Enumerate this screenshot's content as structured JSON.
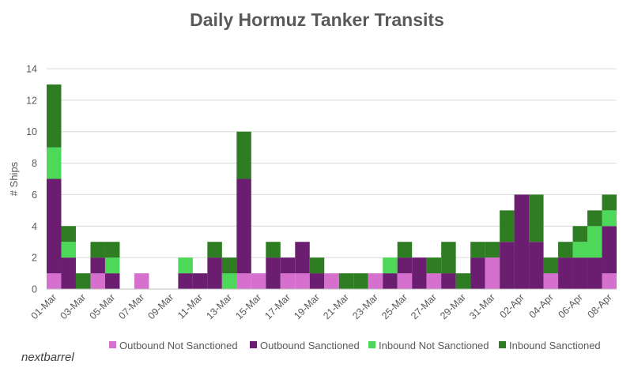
{
  "colors": {
    "outbound_not_sanctioned": "#d670cf",
    "outbound_sanctioned": "#6b1e70",
    "inbound_not_sanctioned": "#4ed85a",
    "inbound_sanctioned": "#2e7d23",
    "grid": "#d9d9d9",
    "axis": "#bfbfbf"
  },
  "watermark": "nextbarrel",
  "chart_data": {
    "type": "bar",
    "stacked": true,
    "title": "Daily Hormuz Tanker Transits",
    "xlabel": "",
    "ylabel": "# Ships",
    "ylim": [
      0,
      14
    ],
    "yticks": [
      0,
      2,
      4,
      6,
      8,
      10,
      12,
      14
    ],
    "grid": true,
    "legend_position": "bottom",
    "categories": [
      "01-Mar",
      "02-Mar",
      "03-Mar",
      "04-Mar",
      "05-Mar",
      "06-Mar",
      "07-Mar",
      "08-Mar",
      "09-Mar",
      "10-Mar",
      "11-Mar",
      "12-Mar",
      "13-Mar",
      "14-Mar",
      "15-Mar",
      "16-Mar",
      "17-Mar",
      "18-Mar",
      "19-Mar",
      "20-Mar",
      "21-Mar",
      "22-Mar",
      "23-Mar",
      "24-Mar",
      "25-Mar",
      "26-Mar",
      "27-Mar",
      "28-Mar",
      "29-Mar",
      "30-Mar",
      "31-Mar",
      "01-Apr",
      "02-Apr",
      "03-Apr",
      "04-Apr",
      "05-Apr",
      "06-Apr",
      "07-Apr",
      "08-Apr"
    ],
    "tick_labels": [
      "01-Mar",
      "03-Mar",
      "05-Mar",
      "07-Mar",
      "09-Mar",
      "11-Mar",
      "13-Mar",
      "15-Mar",
      "17-Mar",
      "19-Mar",
      "21-Mar",
      "23-Mar",
      "25-Mar",
      "27-Mar",
      "29-Mar",
      "31-Mar",
      "02-Apr",
      "04-Apr",
      "06-Apr",
      "08-Apr"
    ],
    "series": [
      {
        "name": "Outbound Not Sanctioned",
        "color_key": "outbound_not_sanctioned",
        "values": [
          1,
          0,
          0,
          1,
          0,
          0,
          1,
          0,
          0,
          0,
          0,
          0,
          0,
          1,
          1,
          0,
          1,
          1,
          0,
          1,
          0,
          0,
          1,
          0,
          1,
          0,
          1,
          0,
          0,
          0,
          2,
          0,
          0,
          0,
          1,
          0,
          0,
          0,
          1
        ]
      },
      {
        "name": "Outbound Sanctioned",
        "color_key": "outbound_sanctioned",
        "values": [
          6,
          2,
          0,
          1,
          1,
          0,
          0,
          0,
          0,
          1,
          1,
          2,
          0,
          6,
          0,
          2,
          1,
          2,
          1,
          0,
          0,
          0,
          0,
          1,
          1,
          2,
          0,
          1,
          0,
          2,
          0,
          3,
          6,
          3,
          0,
          2,
          2,
          2,
          3
        ]
      },
      {
        "name": "Inbound Not Sanctioned",
        "color_key": "inbound_not_sanctioned",
        "values": [
          2,
          1,
          0,
          0,
          1,
          0,
          0,
          0,
          0,
          1,
          0,
          0,
          1,
          0,
          0,
          0,
          0,
          0,
          0,
          0,
          0,
          0,
          0,
          1,
          0,
          0,
          0,
          0,
          0,
          0,
          0,
          0,
          0,
          0,
          0,
          0,
          1,
          2,
          1
        ]
      },
      {
        "name": "Inbound Sanctioned",
        "color_key": "inbound_sanctioned",
        "values": [
          4,
          1,
          1,
          1,
          1,
          0,
          0,
          0,
          0,
          0,
          0,
          1,
          1,
          3,
          0,
          1,
          0,
          0,
          1,
          0,
          1,
          1,
          0,
          0,
          1,
          0,
          1,
          2,
          1,
          1,
          1,
          2,
          0,
          3,
          1,
          1,
          1,
          1,
          1
        ]
      }
    ]
  }
}
